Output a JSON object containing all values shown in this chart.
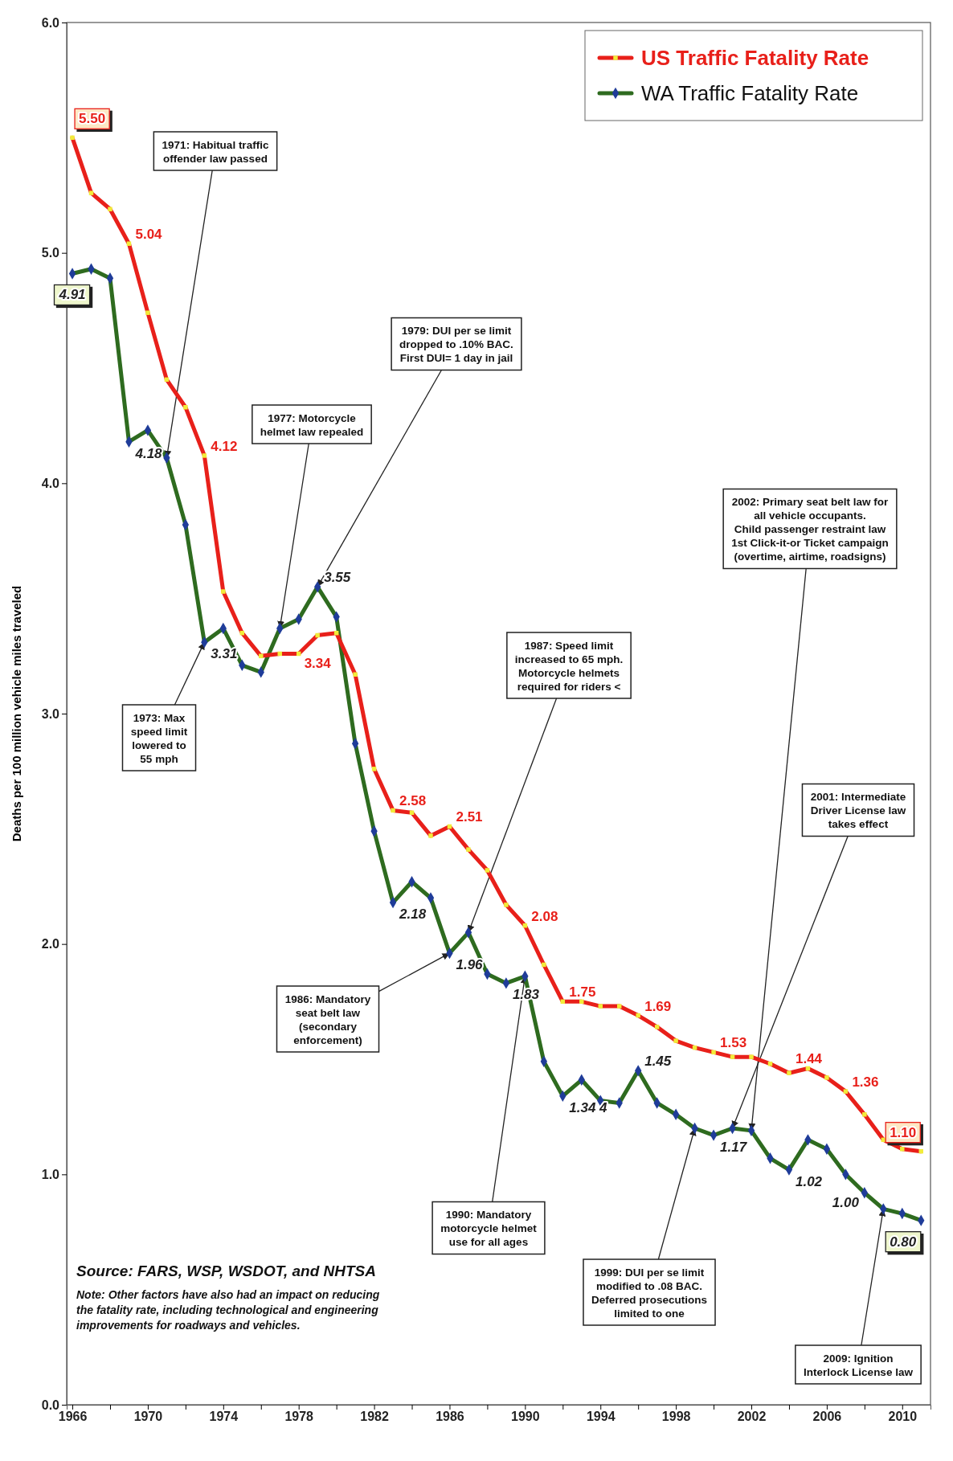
{
  "chart_data": {
    "type": "line",
    "ylabel": "Deaths per 100 million vehicle miles traveled",
    "x": [
      1966,
      1967,
      1968,
      1969,
      1970,
      1971,
      1972,
      1973,
      1974,
      1975,
      1976,
      1977,
      1978,
      1979,
      1980,
      1981,
      1982,
      1983,
      1984,
      1985,
      1986,
      1987,
      1988,
      1989,
      1990,
      1991,
      1992,
      1993,
      1994,
      1995,
      1996,
      1997,
      1998,
      1999,
      2000,
      2001,
      2002,
      2003,
      2004,
      2005,
      2006,
      2007,
      2008,
      2009,
      2010,
      2011
    ],
    "xlim": [
      1965.7,
      2011.5
    ],
    "xticks": [
      1966,
      {
        "value": 1968,
        "label": null
      },
      1970,
      {
        "value": 1972,
        "label": null
      },
      1974,
      {
        "value": 1976,
        "label": null
      },
      1978,
      {
        "value": 1980,
        "label": null
      },
      1982,
      {
        "value": 1984,
        "label": null
      },
      1986,
      {
        "value": 1988,
        "label": null
      },
      1990,
      {
        "value": 1992,
        "label": null
      },
      1994,
      {
        "value": 1996,
        "label": null
      },
      1998,
      {
        "value": 2000,
        "label": null
      },
      2002,
      {
        "value": 2004,
        "label": null
      },
      2006,
      {
        "value": 2008,
        "label": null
      },
      2010
    ],
    "ylim": [
      0,
      6
    ],
    "yticks": [
      {
        "value": 0,
        "label": "0.0"
      },
      {
        "value": 1,
        "label": "1.0"
      },
      {
        "value": 2,
        "label": "2.0"
      },
      {
        "value": 3,
        "label": "3.0"
      },
      {
        "value": 4,
        "label": "4.0"
      },
      {
        "value": 5,
        "label": "5.0"
      },
      {
        "value": 6,
        "label": "6.0"
      }
    ],
    "legend": "top right",
    "line_style": "solid",
    "series": [
      {
        "name": "US Traffic Fatality Rate",
        "color": "#e8201a",
        "marker": "square",
        "values": [
          5.5,
          5.26,
          5.19,
          5.04,
          4.74,
          4.45,
          4.33,
          4.12,
          3.53,
          3.35,
          3.25,
          3.26,
          3.26,
          3.34,
          3.35,
          3.17,
          2.76,
          2.58,
          2.57,
          2.47,
          2.51,
          2.41,
          2.32,
          2.17,
          2.08,
          1.91,
          1.75,
          1.75,
          1.73,
          1.73,
          1.69,
          1.64,
          1.58,
          1.55,
          1.53,
          1.51,
          1.51,
          1.48,
          1.44,
          1.46,
          1.42,
          1.36,
          1.26,
          1.15,
          1.11,
          1.1
        ],
        "value_labels": [
          "5.50",
          null,
          null,
          "5.04",
          null,
          null,
          null,
          "4.12",
          null,
          null,
          null,
          null,
          null,
          "3.34",
          null,
          null,
          null,
          "2.58",
          null,
          null,
          "2.51",
          null,
          null,
          null,
          "2.08",
          null,
          "1.75",
          null,
          null,
          null,
          "1.69",
          null,
          null,
          null,
          "1.53",
          null,
          null,
          null,
          "1.44",
          null,
          null,
          "1.36",
          null,
          null,
          null,
          "1.10"
        ]
      },
      {
        "name": "WA Traffic Fatality Rate",
        "color": "#2e6b1f",
        "marker": "diamond",
        "values": [
          4.91,
          4.93,
          4.89,
          4.18,
          4.23,
          4.11,
          3.82,
          3.31,
          3.37,
          3.21,
          3.18,
          3.37,
          3.41,
          3.55,
          3.42,
          2.87,
          2.49,
          2.18,
          2.27,
          2.2,
          1.96,
          2.05,
          1.87,
          1.83,
          1.86,
          1.49,
          1.34,
          1.41,
          1.32,
          1.31,
          1.45,
          1.31,
          1.26,
          1.2,
          1.17,
          1.2,
          1.19,
          1.07,
          1.02,
          1.15,
          1.11,
          1.0,
          0.92,
          0.85,
          0.83,
          0.8
        ],
        "value_labels": [
          "4.91",
          null,
          null,
          "4.18",
          null,
          null,
          null,
          "3.31",
          null,
          null,
          null,
          null,
          null,
          "3.55",
          null,
          null,
          null,
          "2.18",
          null,
          null,
          "1.96",
          null,
          null,
          "1.83",
          null,
          null,
          "1.34 4",
          null,
          null,
          null,
          "1.45",
          null,
          null,
          null,
          "1.17",
          null,
          null,
          null,
          "1.02",
          null,
          null,
          "1.00",
          null,
          null,
          null,
          "0.80"
        ]
      }
    ],
    "annotations": [
      {
        "text": "1971:  Habitual traffic\noffender law passed",
        "x": 1971,
        "y": 4.11
      },
      {
        "text": "1973:  Max\nspeed limit\nlowered to\n55 mph",
        "x": 1973,
        "y": 3.31
      },
      {
        "text": "1977:  Motorcycle\nhelmet law repealed",
        "x": 1977,
        "y": 3.37
      },
      {
        "text": "1979:  DUI per se limit\ndropped to .10% BAC.\nFirst DUI= 1 day in jail",
        "x": 1979,
        "y": 3.55
      },
      {
        "text": "1986:  Mandatory\nseat belt law\n(secondary\nenforcement)",
        "x": 1986,
        "y": 1.96
      },
      {
        "text": "1987: Speed limit\nincreased to 65 mph.\nMotorcycle helmets\nrequired  for riders <",
        "x": 1987,
        "y": 2.05
      },
      {
        "text": "1990:  Mandatory\nmotorcycle helmet\nuse for all ages",
        "x": 1990,
        "y": 1.86
      },
      {
        "text": "1999:  DUI per se limit\nmodified to .08 BAC.\nDeferred prosecutions\nlimited to one",
        "x": 1999,
        "y": 1.2
      },
      {
        "text": "2001:  Intermediate\nDriver License law\ntakes effect",
        "x": 2001,
        "y": 1.2
      },
      {
        "text": "2002:  Primary seat belt law for\nall vehicle occupants.\nChild passenger restraint law\n1st Click-it-or Ticket campaign\n(overtime, airtime, roadsigns)",
        "x": 2002,
        "y": 1.19
      },
      {
        "text": "2009:  Ignition\nInterlock License law",
        "x": 2009,
        "y": 0.85
      },
      "Source: FARS, WSP, WSDOT, and NHTSA",
      "Note: Other factors have also had an impact on reducing\nthe fatality rate, including technological and engineering\nimprovements for roadways and vehicles."
    ]
  }
}
